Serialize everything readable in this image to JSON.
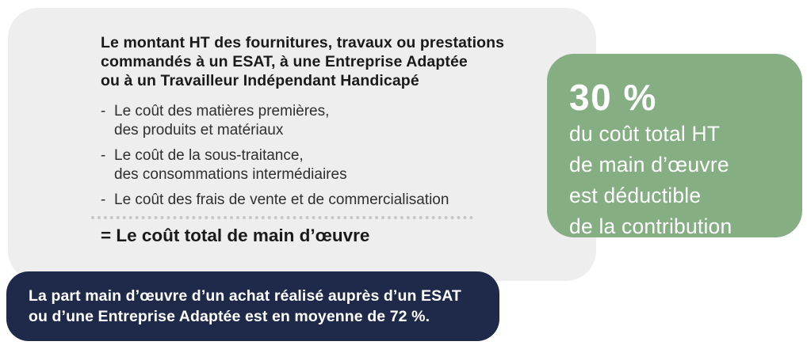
{
  "colors": {
    "page_background": "#ffffff",
    "card_background": "#eeeeee",
    "green_box_background": "#85ae83",
    "navy_box_background": "#1f2a4b",
    "dark_text": "#1a1a1a",
    "body_text": "#2f2f2f",
    "divider_dots": "#c6c6c6",
    "light_text": "#ffffff"
  },
  "card": {
    "title_lines": [
      "Le montant HT des fournitures, travaux ou prestations",
      "commandés à un ESAT, à une Entreprise Adaptée",
      "ou à un Travailleur Indépendant Handicapé"
    ],
    "bullet": "-",
    "items": [
      {
        "lines": [
          "Le coût des matières premières,",
          "des produits et matériaux"
        ]
      },
      {
        "lines": [
          "Le coût de la sous-traitance,",
          "des consommations intermédiaires"
        ]
      },
      {
        "lines": [
          "Le coût des frais de vente et de commercialisation"
        ]
      }
    ],
    "total_label": "= Le coût total de main d’œuvre"
  },
  "green_box": {
    "percent": "30 %",
    "lines": [
      "du coût total HT",
      "de main d’œuvre",
      "est déductible",
      "de la contribution"
    ]
  },
  "navy_box": {
    "lines": [
      "La part main d’œuvre d’un achat réalisé auprès d’un ESAT",
      "ou d’une Entreprise Adaptée est en moyenne de 72 %."
    ]
  }
}
